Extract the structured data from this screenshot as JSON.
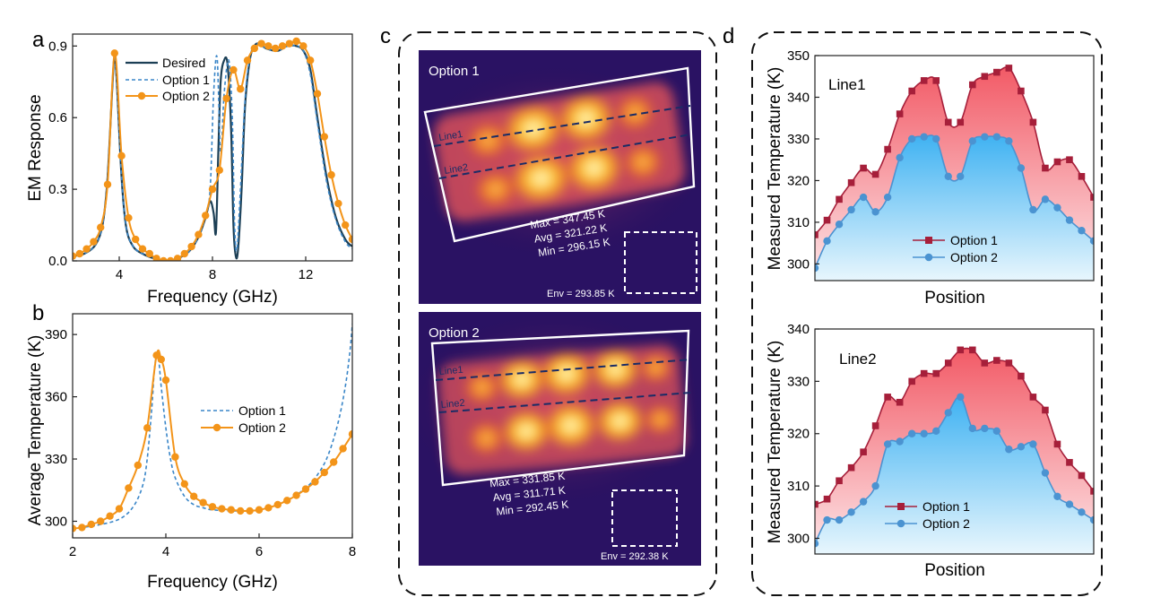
{
  "panels": {
    "a": "a",
    "b": "b",
    "c": "c",
    "d": "d"
  },
  "colors": {
    "desired": "#1c3f55",
    "option1": "#3a86c8",
    "option2": "#f39419",
    "line_option1": "#a61f3a",
    "line_option2": "#4b93d1",
    "fill_red": "#f25a66",
    "fill_blue": "#4fb8f2"
  },
  "chart_data": [
    {
      "id": "a",
      "type": "line",
      "xlabel": "Frequency (GHz)",
      "ylabel": "EM Response",
      "xlim": [
        2,
        14
      ],
      "ylim": [
        0,
        0.95
      ],
      "xticks": [
        4,
        8,
        12
      ],
      "yticks": [
        0.0,
        0.3,
        0.6,
        0.9
      ],
      "ytick_labels": [
        "0.0",
        "0.3",
        "0.6",
        "0.9"
      ],
      "legend": [
        "Desired",
        "Option 1",
        "Option 2"
      ],
      "series": [
        {
          "name": "Desired",
          "style": "solid",
          "x": [
            2.0,
            2.5,
            3.0,
            3.3,
            3.5,
            3.7,
            3.8,
            3.9,
            4.1,
            4.3,
            4.6,
            5.0,
            5.5,
            6.0,
            6.5,
            7.0,
            7.4,
            7.7,
            7.9,
            8.05,
            8.15,
            8.25,
            8.35,
            8.5,
            8.65,
            8.8,
            8.9,
            9.0,
            9.1,
            9.25,
            9.4,
            9.6,
            9.8,
            10.0,
            10.3,
            10.8,
            11.2,
            11.6,
            11.9,
            12.2,
            12.5,
            12.9,
            13.3,
            13.7,
            14.0
          ],
          "y": [
            0.02,
            0.03,
            0.07,
            0.16,
            0.35,
            0.72,
            0.86,
            0.74,
            0.35,
            0.14,
            0.06,
            0.03,
            0.01,
            0.0,
            0.01,
            0.04,
            0.1,
            0.18,
            0.25,
            0.2,
            0.12,
            0.45,
            0.75,
            0.84,
            0.82,
            0.55,
            0.15,
            0.02,
            0.05,
            0.3,
            0.65,
            0.84,
            0.9,
            0.91,
            0.89,
            0.88,
            0.9,
            0.9,
            0.88,
            0.8,
            0.6,
            0.35,
            0.18,
            0.09,
            0.06
          ]
        },
        {
          "name": "Option 1",
          "style": "dashed",
          "x": [
            2.0,
            2.5,
            3.0,
            3.3,
            3.5,
            3.7,
            3.8,
            3.9,
            4.1,
            4.3,
            4.6,
            5.0,
            5.5,
            6.0,
            6.5,
            7.0,
            7.4,
            7.7,
            7.9,
            8.05,
            8.2,
            8.35,
            8.5,
            8.7,
            8.85,
            8.95,
            9.05,
            9.2,
            9.4,
            9.6,
            9.8,
            10.0,
            10.3,
            10.8,
            11.2,
            11.6,
            11.9,
            12.2,
            12.5,
            12.9,
            13.3,
            13.7,
            14.0
          ],
          "y": [
            0.02,
            0.03,
            0.07,
            0.16,
            0.35,
            0.72,
            0.86,
            0.74,
            0.35,
            0.14,
            0.06,
            0.03,
            0.01,
            0.0,
            0.01,
            0.04,
            0.1,
            0.19,
            0.3,
            0.7,
            0.85,
            0.45,
            0.7,
            0.84,
            0.6,
            0.15,
            0.05,
            0.3,
            0.68,
            0.85,
            0.9,
            0.91,
            0.89,
            0.88,
            0.9,
            0.9,
            0.88,
            0.78,
            0.58,
            0.33,
            0.17,
            0.08,
            0.05
          ]
        },
        {
          "name": "Option 2",
          "style": "marker",
          "x": [
            2.0,
            2.3,
            2.6,
            2.9,
            3.2,
            3.5,
            3.8,
            4.1,
            4.4,
            4.7,
            5.0,
            5.3,
            5.6,
            5.9,
            6.2,
            6.5,
            6.8,
            7.1,
            7.4,
            7.7,
            8.0,
            8.3,
            8.6,
            8.9,
            9.2,
            9.5,
            9.8,
            10.1,
            10.4,
            10.7,
            11.0,
            11.3,
            11.6,
            11.9,
            12.2,
            12.5,
            12.8,
            13.1,
            13.4,
            13.7,
            14.0
          ],
          "y": [
            0.02,
            0.03,
            0.05,
            0.08,
            0.14,
            0.32,
            0.87,
            0.44,
            0.18,
            0.09,
            0.05,
            0.03,
            0.01,
            0.0,
            0.0,
            0.01,
            0.03,
            0.06,
            0.11,
            0.19,
            0.3,
            0.38,
            0.68,
            0.8,
            0.72,
            0.84,
            0.89,
            0.91,
            0.9,
            0.89,
            0.9,
            0.91,
            0.92,
            0.9,
            0.84,
            0.7,
            0.52,
            0.36,
            0.24,
            0.15,
            0.09
          ]
        }
      ]
    },
    {
      "id": "b",
      "type": "line",
      "xlabel": "Frequency (GHz)",
      "ylabel": "Average Temperature (K)",
      "xlim": [
        2,
        8
      ],
      "ylim": [
        292,
        400
      ],
      "xticks": [
        2,
        4,
        6,
        8
      ],
      "yticks": [
        300,
        330,
        360,
        390
      ],
      "legend": [
        "Option 1",
        "Option 2"
      ],
      "series": [
        {
          "name": "Option 1",
          "style": "dashed",
          "x": [
            2.0,
            2.5,
            3.0,
            3.3,
            3.5,
            3.6,
            3.7,
            3.75,
            3.8,
            3.85,
            3.9,
            4.0,
            4.1,
            4.2,
            4.4,
            4.6,
            4.8,
            5.0,
            5.5,
            6.0,
            6.5,
            7.0,
            7.3,
            7.5,
            7.7,
            7.85,
            7.95,
            8.0
          ],
          "y": [
            296.5,
            298.0,
            301.0,
            307.0,
            317.0,
            330.0,
            355.0,
            372.0,
            380.0,
            377.0,
            365.0,
            345.0,
            330.0,
            321.0,
            312.0,
            308.0,
            306.5,
            305.5,
            305.0,
            305.5,
            309.0,
            316.0,
            324.0,
            333.0,
            348.0,
            365.0,
            382.0,
            395.0
          ]
        },
        {
          "name": "Option 2",
          "style": "marker",
          "x": [
            2.0,
            2.2,
            2.4,
            2.6,
            2.8,
            3.0,
            3.2,
            3.4,
            3.6,
            3.8,
            3.9,
            4.0,
            4.2,
            4.4,
            4.6,
            4.8,
            5.0,
            5.2,
            5.4,
            5.6,
            5.8,
            6.0,
            6.2,
            6.4,
            6.6,
            6.8,
            7.0,
            7.2,
            7.4,
            7.6,
            7.8,
            8.0
          ],
          "y": [
            296.5,
            297.0,
            298.5,
            300.0,
            302.5,
            306.0,
            316.0,
            327.0,
            345.0,
            380.0,
            378.0,
            368.0,
            331.0,
            318.0,
            312.0,
            309.0,
            307.0,
            306.0,
            305.5,
            305.0,
            305.0,
            305.5,
            306.5,
            308.0,
            310.0,
            312.5,
            315.5,
            319.0,
            323.5,
            328.5,
            335.0,
            342.0
          ]
        }
      ]
    },
    {
      "id": "d-line1",
      "type": "area",
      "title": "Line1",
      "xlabel": "Position",
      "ylabel": "Measured Temperature (K)",
      "ylim": [
        296,
        350
      ],
      "yticks": [
        300,
        310,
        320,
        330,
        340,
        350
      ],
      "legend": [
        "Option 1",
        "Option 2"
      ],
      "series": [
        {
          "name": "Option 1",
          "values": [
            307.0,
            310.5,
            315.5,
            319.5,
            323.0,
            321.5,
            327.5,
            336.0,
            341.5,
            344.0,
            344.0,
            334.0,
            334.0,
            343.0,
            345.0,
            346.0,
            347.0,
            341.5,
            334.0,
            323.0,
            324.5,
            325.0,
            321.0,
            316.0
          ]
        },
        {
          "name": "Option 2",
          "values": [
            299.0,
            305.5,
            309.5,
            313.0,
            316.0,
            312.5,
            316.0,
            325.5,
            330.0,
            330.5,
            330.0,
            321.0,
            321.0,
            329.5,
            330.5,
            330.5,
            329.5,
            323.0,
            313.0,
            315.5,
            313.5,
            310.5,
            308.0,
            305.5
          ]
        }
      ]
    },
    {
      "id": "d-line2",
      "type": "area",
      "title": "Line2",
      "xlabel": "Position",
      "ylabel": "Measured Temperature (K)",
      "ylim": [
        297,
        340
      ],
      "yticks": [
        300,
        310,
        320,
        330,
        340
      ],
      "legend": [
        "Option 1",
        "Option 2"
      ],
      "series": [
        {
          "name": "Option 1",
          "values": [
            306.5,
            307.5,
            311.0,
            313.5,
            316.5,
            321.5,
            327.0,
            326.0,
            330.0,
            331.5,
            331.5,
            333.5,
            336.0,
            336.0,
            333.5,
            334.0,
            333.5,
            331.0,
            327.0,
            324.5,
            318.0,
            314.5,
            312.0,
            309.0
          ]
        },
        {
          "name": "Option 2",
          "values": [
            299.0,
            303.5,
            303.5,
            305.0,
            307.0,
            310.0,
            318.0,
            318.5,
            320.0,
            320.0,
            320.5,
            324.0,
            327.0,
            321.0,
            321.0,
            320.5,
            317.0,
            317.5,
            318.0,
            312.5,
            308.0,
            306.5,
            305.0,
            303.5
          ]
        }
      ]
    }
  ],
  "thermal": {
    "top": {
      "label": "Option 1",
      "line1": "Line1",
      "line2": "Line2",
      "max": "Max = 347.45 K",
      "avg": "Avg = 321.22 K",
      "min": "Min = 296.15 K",
      "env": "Env = 293.85 K"
    },
    "bottom": {
      "label": "Option 2",
      "line1": "Line1",
      "line2": "Line2",
      "max": "Max = 331.85 K",
      "avg": "Avg = 311.71 K",
      "min": "Min = 292.45 K",
      "env": "Env = 292.38 K"
    }
  }
}
